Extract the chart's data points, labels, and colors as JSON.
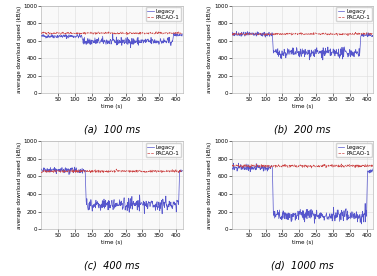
{
  "figsize": [
    3.77,
    2.76
  ],
  "dpi": 100,
  "subplots": [
    {
      "label": "(a)  100 ms",
      "ylim": [
        0,
        1000
      ],
      "xlim": [
        0,
        420
      ],
      "yticks": [
        0,
        200,
        400,
        600,
        800,
        1000
      ],
      "xticks": [
        50,
        100,
        150,
        200,
        250,
        300,
        350,
        400
      ],
      "legacy": {
        "phase1_end": 120,
        "phase1_val": 650,
        "phase2_val": 590,
        "phase3_start": 390,
        "phase3_val": 665,
        "noise": 22,
        "color": "#5555cc",
        "lw": 0.5
      },
      "pacao": {
        "base_val": 685,
        "noise": 15,
        "color": "#cc4444",
        "lw": 0.5,
        "linestyle": "--"
      }
    },
    {
      "label": "(b)  200 ms",
      "ylim": [
        0,
        1000
      ],
      "xlim": [
        0,
        420
      ],
      "yticks": [
        0,
        200,
        400,
        600,
        800,
        1000
      ],
      "xticks": [
        50,
        100,
        150,
        200,
        250,
        300,
        350,
        400
      ],
      "legacy": {
        "phase1_end": 120,
        "phase1_val": 670,
        "phase2_val": 460,
        "phase3_start": 380,
        "phase3_val": 660,
        "noise": 28,
        "color": "#5555cc",
        "lw": 0.5
      },
      "pacao": {
        "base_val": 675,
        "noise": 15,
        "color": "#cc4444",
        "lw": 0.5,
        "linestyle": "--"
      }
    },
    {
      "label": "(c)  400 ms",
      "ylim": [
        0,
        1000
      ],
      "xlim": [
        0,
        420
      ],
      "yticks": [
        0,
        200,
        400,
        600,
        800,
        1000
      ],
      "xticks": [
        50,
        100,
        150,
        200,
        250,
        300,
        350,
        400
      ],
      "legacy": {
        "phase1_end": 130,
        "phase1_val": 670,
        "phase2_val": 280,
        "phase3_start": 408,
        "phase3_val": 660,
        "noise": 35,
        "color": "#5555cc",
        "lw": 0.5
      },
      "pacao": {
        "base_val": 660,
        "noise": 20,
        "color": "#cc4444",
        "lw": 0.5,
        "linestyle": "--"
      }
    },
    {
      "label": "(d)  1000 ms",
      "ylim": [
        0,
        1000
      ],
      "xlim": [
        0,
        420
      ],
      "yticks": [
        0,
        200,
        400,
        600,
        800,
        1000
      ],
      "xticks": [
        50,
        100,
        150,
        200,
        250,
        300,
        350,
        400
      ],
      "legacy": {
        "phase1_end": 120,
        "phase1_val": 700,
        "phase2_val": 155,
        "phase3_start": 400,
        "phase3_val": 660,
        "noise": 35,
        "color": "#5555cc",
        "lw": 0.5
      },
      "pacao": {
        "base_val": 720,
        "noise": 20,
        "color": "#cc4444",
        "lw": 0.5,
        "linestyle": "--"
      }
    }
  ],
  "xlabel": "time (s)",
  "ylabel": "average download speed (kB/s)",
  "legend_legacy": "Legacy",
  "legend_pacao": "PACAO-1",
  "bg_color": "#f9f9f9",
  "grid_color": "#dddddd",
  "caption_fontsize": 7,
  "tick_fontsize": 4,
  "label_fontsize": 4,
  "legend_fontsize": 4
}
